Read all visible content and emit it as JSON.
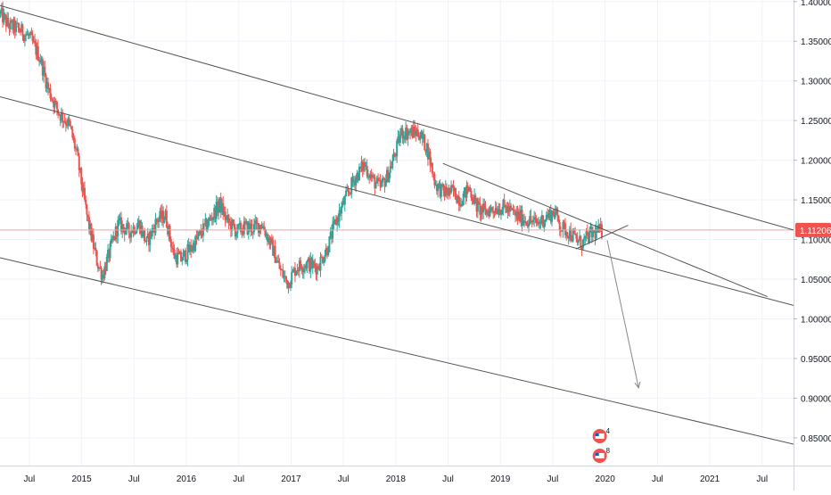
{
  "chart_data": {
    "type": "candlestick",
    "instrument_hint": "EUR/USD weekly (inferred from price range; not labeled on chart)",
    "colors": {
      "up": "#26a69a",
      "down": "#ef5350",
      "trendline": "#555555",
      "arrow": "#888888",
      "current_price_line": "#f0a0a0",
      "price_badge_bg": "#ef5350",
      "price_badge_text": "#ffffff",
      "axis_text": "#131722",
      "grid": "#f0f3fa"
    },
    "y_axis": {
      "ticks": [
        "1.40000",
        "1.35000",
        "1.30000",
        "1.25000",
        "1.20000",
        "1.15000",
        "1.10000",
        "1.05000",
        "1.00000",
        "0.95000",
        "0.90000",
        "0.85000"
      ],
      "range": [
        0.815,
        1.402
      ]
    },
    "x_axis": {
      "ticks": [
        {
          "label": "Jul",
          "t": 2014.5
        },
        {
          "label": "2015",
          "t": 2015.0
        },
        {
          "label": "Jul",
          "t": 2015.5
        },
        {
          "label": "2016",
          "t": 2016.0
        },
        {
          "label": "Jul",
          "t": 2016.5
        },
        {
          "label": "2017",
          "t": 2017.0
        },
        {
          "label": "Jul",
          "t": 2017.5
        },
        {
          "label": "2018",
          "t": 2018.0
        },
        {
          "label": "Jul",
          "t": 2018.5
        },
        {
          "label": "2019",
          "t": 2019.0
        },
        {
          "label": "Jul",
          "t": 2019.5
        },
        {
          "label": "2020",
          "t": 2020.0
        },
        {
          "label": "Jul",
          "t": 2020.5
        },
        {
          "label": "2021",
          "t": 2021.0
        },
        {
          "label": "Jul",
          "t": 2021.5
        }
      ],
      "range": [
        2014.22,
        2021.8
      ]
    },
    "current_price": {
      "value": 1.11206,
      "label": "1.11206"
    },
    "price_anchors": [
      [
        2014.22,
        1.385
      ],
      [
        2014.3,
        1.37
      ],
      [
        2014.4,
        1.365
      ],
      [
        2014.5,
        1.355
      ],
      [
        2014.6,
        1.33
      ],
      [
        2014.68,
        1.29
      ],
      [
        2014.78,
        1.26
      ],
      [
        2014.88,
        1.245
      ],
      [
        2014.95,
        1.21
      ],
      [
        2015.05,
        1.13
      ],
      [
        2015.15,
        1.07
      ],
      [
        2015.2,
        1.055
      ],
      [
        2015.28,
        1.09
      ],
      [
        2015.35,
        1.12
      ],
      [
        2015.45,
        1.11
      ],
      [
        2015.55,
        1.12
      ],
      [
        2015.62,
        1.095
      ],
      [
        2015.72,
        1.125
      ],
      [
        2015.8,
        1.13
      ],
      [
        2015.88,
        1.08
      ],
      [
        2015.95,
        1.075
      ],
      [
        2016.05,
        1.09
      ],
      [
        2016.15,
        1.11
      ],
      [
        2016.25,
        1.13
      ],
      [
        2016.32,
        1.145
      ],
      [
        2016.38,
        1.125
      ],
      [
        2016.48,
        1.11
      ],
      [
        2016.55,
        1.115
      ],
      [
        2016.65,
        1.115
      ],
      [
        2016.72,
        1.12
      ],
      [
        2016.82,
        1.09
      ],
      [
        2016.9,
        1.06
      ],
      [
        2016.97,
        1.045
      ],
      [
        2017.05,
        1.065
      ],
      [
        2017.15,
        1.07
      ],
      [
        2017.25,
        1.065
      ],
      [
        2017.35,
        1.09
      ],
      [
        2017.42,
        1.12
      ],
      [
        2017.5,
        1.145
      ],
      [
        2017.6,
        1.175
      ],
      [
        2017.7,
        1.195
      ],
      [
        2017.78,
        1.175
      ],
      [
        2017.85,
        1.165
      ],
      [
        2017.92,
        1.18
      ],
      [
        2018.0,
        1.21
      ],
      [
        2018.05,
        1.235
      ],
      [
        2018.12,
        1.235
      ],
      [
        2018.22,
        1.235
      ],
      [
        2018.3,
        1.215
      ],
      [
        2018.38,
        1.17
      ],
      [
        2018.45,
        1.16
      ],
      [
        2018.55,
        1.16
      ],
      [
        2018.62,
        1.15
      ],
      [
        2018.7,
        1.165
      ],
      [
        2018.78,
        1.14
      ],
      [
        2018.85,
        1.135
      ],
      [
        2018.95,
        1.14
      ],
      [
        2019.05,
        1.14
      ],
      [
        2019.15,
        1.13
      ],
      [
        2019.25,
        1.125
      ],
      [
        2019.35,
        1.12
      ],
      [
        2019.45,
        1.13
      ],
      [
        2019.52,
        1.135
      ],
      [
        2019.58,
        1.115
      ],
      [
        2019.65,
        1.11
      ],
      [
        2019.72,
        1.1
      ],
      [
        2019.78,
        1.095
      ],
      [
        2019.85,
        1.105
      ],
      [
        2019.92,
        1.11
      ],
      [
        2019.97,
        1.11
      ]
    ],
    "annotations": {
      "lines": [
        {
          "name": "channel-upper-line",
          "from": [
            2014.22,
            1.395
          ],
          "to": [
            2021.8,
            1.112
          ]
        },
        {
          "name": "channel-middle-line",
          "from": [
            2014.22,
            1.28
          ],
          "to": [
            2021.8,
            1.017
          ]
        },
        {
          "name": "channel-lower-line",
          "from": [
            2014.22,
            1.077
          ],
          "to": [
            2021.8,
            0.842
          ]
        },
        {
          "name": "wedge-upper-line",
          "from": [
            2018.45,
            1.196
          ],
          "to": [
            2021.55,
            1.028
          ]
        },
        {
          "name": "wedge-lower-line",
          "from": [
            2019.72,
            1.088
          ],
          "to": [
            2020.22,
            1.118
          ]
        }
      ],
      "arrow": {
        "name": "projection-arrow",
        "from": [
          2020.02,
          1.099
        ],
        "to": [
          2020.32,
          0.913
        ]
      }
    },
    "event_markers": [
      {
        "label": "4",
        "t": 2020.0,
        "row": 0
      },
      {
        "label": "8",
        "t": 2020.0,
        "row": 1
      }
    ]
  }
}
